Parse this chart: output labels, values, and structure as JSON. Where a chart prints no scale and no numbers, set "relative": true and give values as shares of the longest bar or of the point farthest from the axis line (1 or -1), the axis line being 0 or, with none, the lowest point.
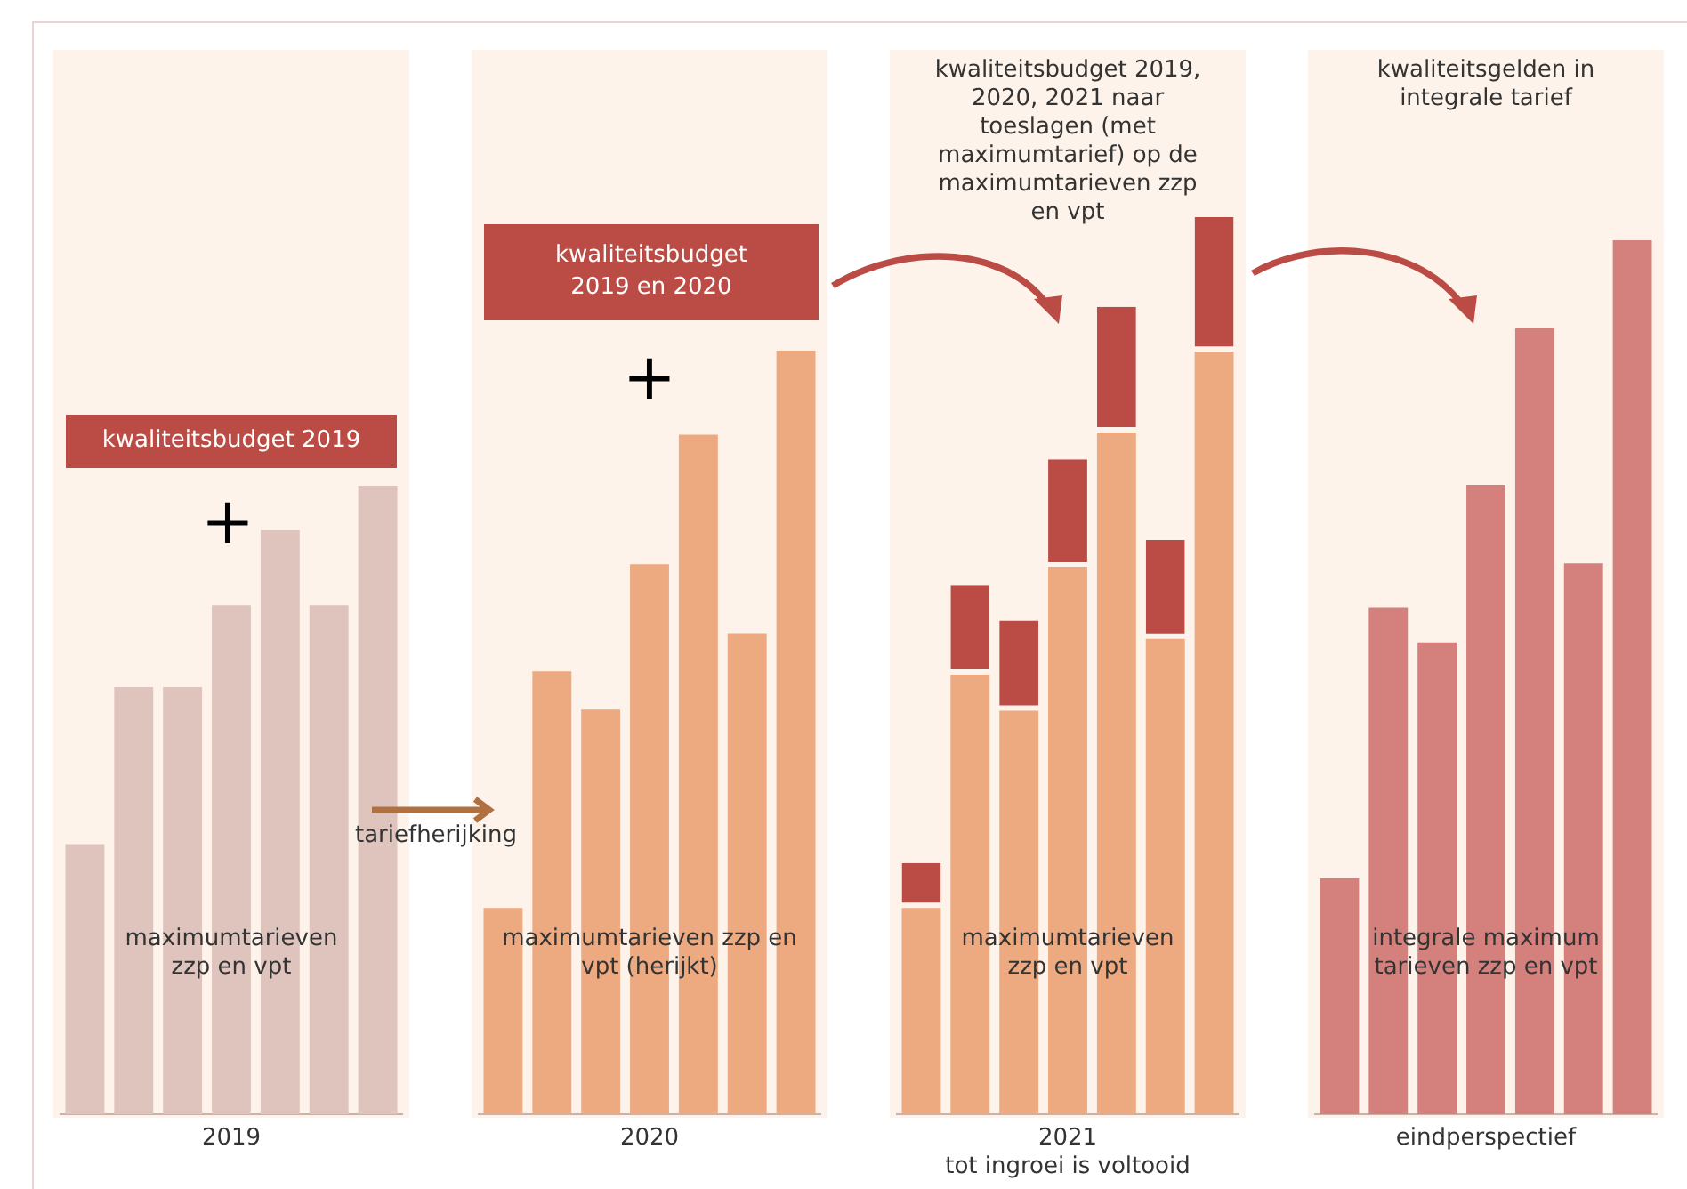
{
  "chart_data": [
    {
      "type": "bar",
      "relative": true,
      "xlabel": "2019",
      "categories": [
        null,
        null,
        null,
        null,
        null,
        null,
        null
      ],
      "series": [
        {
          "color": "#dfc3bd",
          "values": [
            0.43,
            0.68,
            0.68,
            0.81,
            0.93,
            0.81,
            1
          ]
        }
      ],
      "annotations": [
        "kwaliteitsbudget 2019",
        "+",
        "maximumtarieven zzp en vpt"
      ]
    },
    {
      "type": "bar",
      "relative": true,
      "xlabel": "2020",
      "categories": [
        null,
        null,
        null,
        null,
        null,
        null,
        null
      ],
      "series": [
        {
          "color": "#eda97f",
          "values": [
            0.27,
            0.58,
            0.53,
            0.72,
            0.89,
            0.63,
            1
          ]
        }
      ],
      "annotations": [
        "kwaliteitsbudget 2019 en 2020",
        "+",
        "maximumtarieven zzp en vpt (herijkt)",
        "tariefherijking"
      ]
    },
    {
      "type": "bar",
      "relative": true,
      "stacked": true,
      "title": "kwaliteitsbudget 2019, 2020, 2021 naar toeslagen (met maximumtarief) op de maximumtarieven zzp en vpt",
      "xlabel": "2021",
      "categories": [
        null,
        null,
        null,
        null,
        null,
        null,
        null
      ],
      "series": [
        {
          "color": "#eda97f",
          "values": [
            0.23,
            0.49,
            0.45,
            0.61,
            0.76,
            0.53,
            0.85
          ]
        },
        {
          "color": "#bb4c45",
          "values": [
            0.05,
            0.1,
            0.1,
            0.12,
            0.14,
            0.11,
            0.15
          ]
        }
      ],
      "annotations": [
        "maximumtarieven zzp en vpt",
        "tot ingroei is voltooid"
      ]
    },
    {
      "type": "bar",
      "relative": true,
      "title": "kwaliteitsgelden in integrale tarief",
      "xlabel": "eindperspectief",
      "categories": [
        null,
        null,
        null,
        null,
        null,
        null,
        null
      ],
      "series": [
        {
          "color": "#d4807c",
          "values": [
            0.27,
            0.58,
            0.54,
            0.72,
            0.9,
            0.63,
            1
          ]
        }
      ],
      "annotations": [
        "integrale maximum tarieven zzp en vpt"
      ]
    }
  ]
}
